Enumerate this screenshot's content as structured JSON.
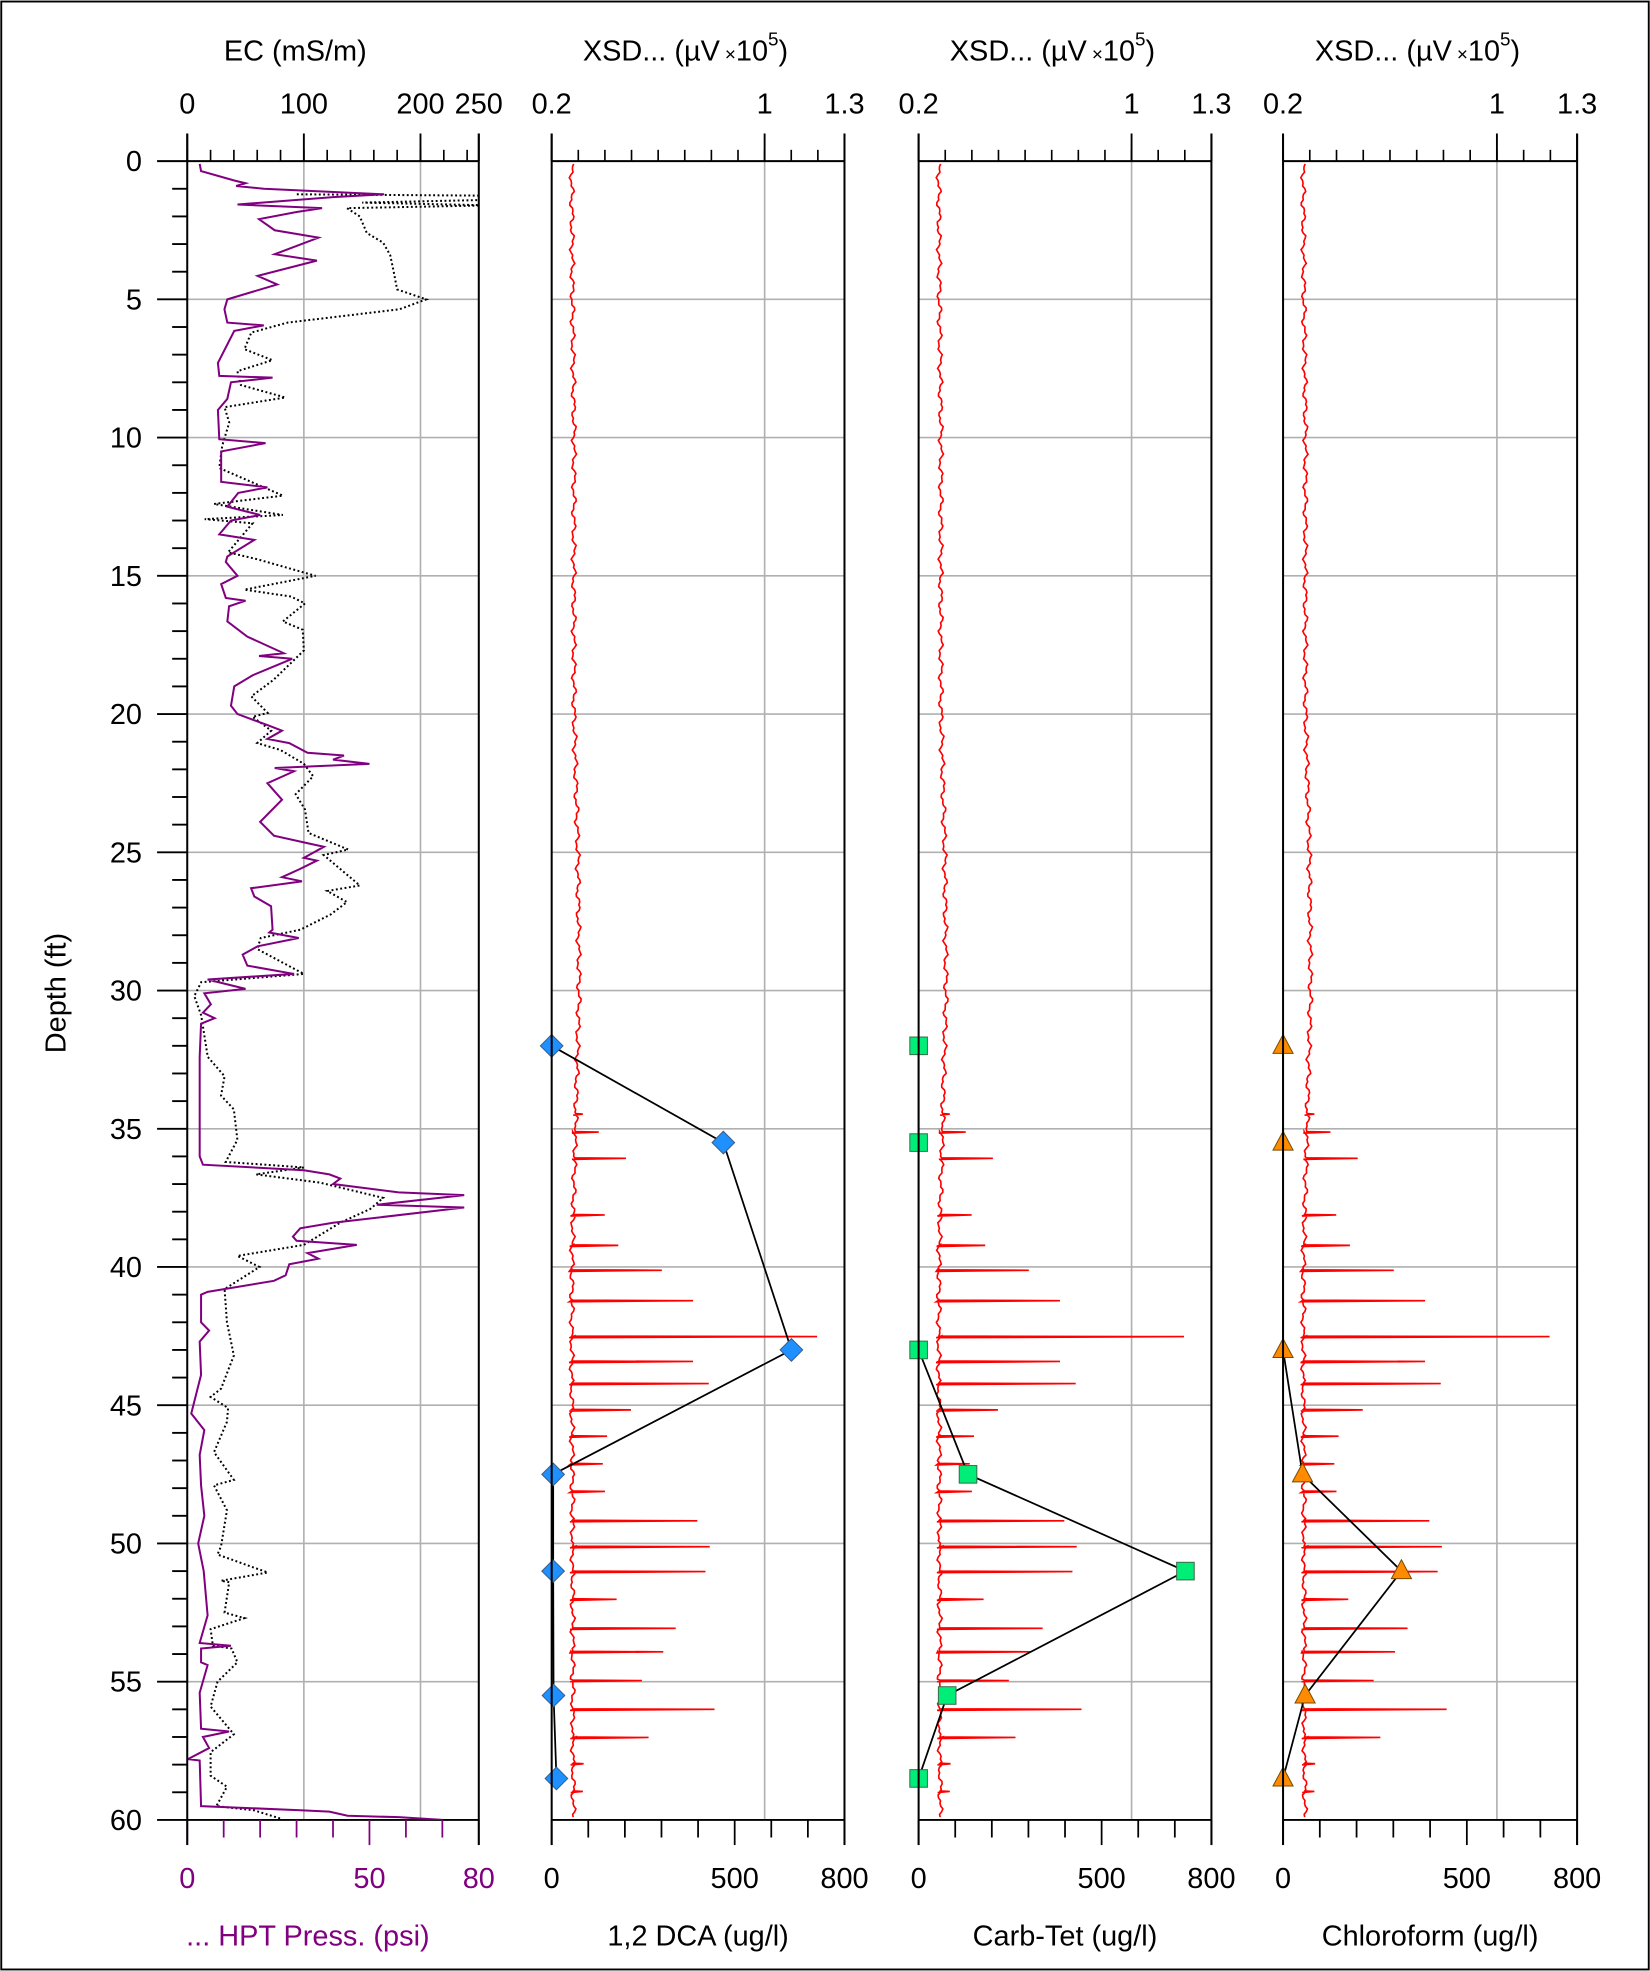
{
  "chart_data": {
    "type": "line",
    "y_axis": {
      "label": "Depth (ft)",
      "range": [
        0,
        60
      ],
      "inverted": true,
      "tick_labels": [
        "0",
        "5",
        "10",
        "15",
        "20",
        "25",
        "30",
        "35",
        "40",
        "45",
        "50",
        "55",
        "60"
      ],
      "grid": true
    },
    "xsd_trace": {
      "name": "XSD...",
      "color": "#FF0000",
      "baseline_depths": [
        0.1,
        5,
        10,
        15,
        20,
        25,
        30,
        35,
        40,
        45,
        50,
        55,
        60
      ],
      "baseline_values": [
        0.275,
        0.278,
        0.284,
        0.283,
        0.284,
        0.298,
        0.303,
        0.289,
        0.276,
        0.276,
        0.279,
        0.279,
        0.282
      ],
      "spike_depths": [
        34.45,
        35.1,
        36.05,
        38.1,
        39.2,
        40.1,
        41.2,
        42.5,
        43.4,
        44.2,
        45.15,
        46.1,
        47.1,
        48.1,
        49.16,
        50.1,
        51.0,
        52.0,
        53.05,
        53.9,
        54.94,
        55.98,
        57.0,
        57.95,
        58.95
      ],
      "spike_values": [
        0.317,
        0.377,
        0.479,
        0.399,
        0.45,
        0.614,
        0.731,
        1.197,
        0.731,
        0.79,
        0.498,
        0.408,
        0.392,
        0.4,
        0.747,
        0.794,
        0.778,
        0.444,
        0.666,
        0.619,
        0.539,
        0.812,
        0.564,
        0.32,
        0.317
      ]
    },
    "panels": [
      {
        "top_axis": {
          "title": "EC (mS/m)",
          "range": [
            0,
            250
          ],
          "tick_labels": [
            "0",
            "100",
            "200",
            "250"
          ],
          "tick_values": [
            0,
            100,
            200,
            250
          ]
        },
        "bottom_axis": {
          "title": "... HPT Press. (psi)",
          "range": [
            0,
            80
          ],
          "tick_labels": [
            "0",
            "50",
            "80"
          ],
          "tick_values": [
            0,
            50,
            80
          ],
          "color": "#800080"
        },
        "series": [
          {
            "name": "EC",
            "axis": "top",
            "color": "#000000",
            "style": "dotted",
            "depth": [
              1.2,
              1.25,
              1.4,
              1.5,
              1.6,
              1.7,
              2.0,
              2.6,
              2.95,
              3.4,
              4.0,
              4.64,
              5.0,
              5.36,
              5.84,
              6.2,
              6.8,
              7.2,
              7.6,
              8.1,
              8.55,
              8.9,
              9.46,
              10.3,
              11.1,
              12.1,
              12.4,
              12.8,
              12.95,
              13.1,
              14.15,
              14.4,
              15.0,
              15.5,
              15.75,
              16.0,
              16.65,
              16.95,
              17.7,
              18.15,
              18.76,
              19.36,
              19.96,
              20.1,
              20.6,
              21.05,
              21.3,
              21.8,
              22.25,
              22.9,
              23.45,
              24.3,
              24.9,
              25.1,
              26.2,
              26.4,
              26.8,
              27.25,
              27.8,
              28.1,
              28.5,
              29.4,
              29.7,
              30.2,
              30.9,
              32.4,
              33.1,
              33.8,
              34.3,
              35.4,
              36.2,
              36.4,
              36.65,
              36.95,
              37.5,
              37.9,
              38.4,
              39.2,
              39.6,
              40.0,
              40.8,
              42.0,
              43.2,
              44.4,
              44.7,
              45.1,
              45.6,
              46.7,
              47.7,
              47.9,
              48.8,
              50.1,
              50.4,
              50.75,
              51.05,
              51.35,
              51.4,
              52.5,
              52.7,
              53.1,
              53.7,
              53.8,
              54.3,
              55.0,
              55.9,
              56.9,
              57.55,
              58.4,
              58.8,
              59.5,
              59.65,
              59.95
            ],
            "values": [
              94,
              260,
              260,
              150,
              260,
              137,
              148,
              154,
              168,
              174,
              177,
              180,
              205,
              182,
              86,
              55,
              49,
              73,
              43,
              46,
              84,
              32,
              36,
              30,
              27.5,
              82,
              23,
              82,
              15,
              56,
              35,
              60,
              110,
              49,
              89,
              101,
              82,
              99,
              100,
              89,
              74,
              55,
              69,
              56,
              72,
              60,
              80,
              100,
              108,
              93,
              101,
              104,
              138,
              117,
              148,
              120,
              137,
              123,
              97,
              63,
              60,
              100,
              12,
              6,
              12,
              17.6,
              32,
              29,
              40,
              43,
              33,
              100,
              59,
              114,
              168,
              157,
              131,
              100,
              43,
              62,
              32,
              34,
              40,
              29,
              20,
              35,
              34,
              23,
              40,
              23,
              34,
              29,
              26,
              49,
              69,
              29,
              36,
              32,
              49,
              20,
              22,
              38,
              43,
              26,
              20,
              40,
              20,
              20,
              34,
              25,
              57,
              80
            ]
          },
          {
            "name": "HPT Press.",
            "axis": "bottom",
            "color": "#800080",
            "style": "solid",
            "depth": [
              0.1,
              0.36,
              0.7,
              0.8,
              0.9,
              1.0,
              1.2,
              1.3,
              1.57,
              1.7,
              1.84,
              2.1,
              2.5,
              2.77,
              3.37,
              3.6,
              4.15,
              4.46,
              5.0,
              5.36,
              5.84,
              5.94,
              6.14,
              7.3,
              7.77,
              7.83,
              8.0,
              8.6,
              9.0,
              10.06,
              10.2,
              10.5,
              11.6,
              11.8,
              12.0,
              12.5,
              12.8,
              13.0,
              13.5,
              13.7,
              14.3,
              14.5,
              15.0,
              15.3,
              15.8,
              15.9,
              16.1,
              16.65,
              17.2,
              17.8,
              17.9,
              18.0,
              18.6,
              19.0,
              19.7,
              20.0,
              20.4,
              20.6,
              20.9,
              21.05,
              21.4,
              21.5,
              21.65,
              21.8,
              21.95,
              22.07,
              22.5,
              23.1,
              23.9,
              24.4,
              24.7,
              24.8,
              25.2,
              25.3,
              25.6,
              25.9,
              26.05,
              26.3,
              26.6,
              26.95,
              27.8,
              27.9,
              28.1,
              28.4,
              28.7,
              29.1,
              29.4,
              29.6,
              29.94,
              30.1,
              30.5,
              30.8,
              31.0,
              31.2,
              32.4,
              36.0,
              36.3,
              36.5,
              36.65,
              36.8,
              37.0,
              37.3,
              37.4,
              37.75,
              37.85,
              38.4,
              38.6,
              38.9,
              39.05,
              39.2,
              39.5,
              39.7,
              39.9,
              40.3,
              40.5,
              40.9,
              41.0,
              42.0,
              42.3,
              42.7,
              43.9,
              45.3,
              45.9,
              46.8,
              47.9,
              49.0,
              50.0,
              51.0,
              52.6,
              53.6,
              53.7,
              53.8,
              54.3,
              54.4,
              55.4,
              56.7,
              56.8,
              57.0,
              57.4,
              57.8,
              57.85,
              59.5,
              59.65,
              59.7,
              59.85,
              59.9,
              60.0
            ],
            "values": [
              3.4,
              3.8,
              12.9,
              16,
              13.4,
              21,
              54,
              40,
              13.8,
              37,
              30,
              19.7,
              24,
              36,
              24,
              35.6,
              19.3,
              24.7,
              11,
              10.2,
              11,
              21,
              12.9,
              8.4,
              8.8,
              23.4,
              12,
              11,
              8.4,
              8.8,
              21.5,
              9.3,
              9.3,
              22,
              14,
              11,
              20,
              12,
              8.8,
              18.4,
              11,
              10.6,
              13.8,
              9.3,
              10.6,
              16,
              11.5,
              11,
              16.5,
              26.5,
              19.7,
              28.8,
              17.9,
              12.9,
              12,
              13.8,
              22,
              26,
              22,
              28,
              33,
              43,
              40,
              50,
              24,
              29.3,
              22,
              26,
              20,
              23.8,
              34,
              37.5,
              32,
              35.6,
              31,
              26,
              31.5,
              17.5,
              18.4,
              23,
              23.4,
              22.5,
              30.6,
              19.3,
              15.2,
              16.5,
              29.3,
              5.6,
              16,
              4.7,
              6.5,
              4.3,
              7.5,
              3.8,
              3.4,
              3.4,
              4.3,
              32,
              39,
              42,
              40,
              58,
              76,
              52,
              76,
              40,
              31,
              29,
              30,
              46.5,
              33,
              36,
              28,
              27,
              23.8,
              5.6,
              3.8,
              3.8,
              6,
              3.4,
              3.8,
              1.1,
              4.7,
              3.4,
              3.8,
              4.7,
              3,
              4.5,
              5.6,
              3.4,
              12,
              3.8,
              3.8,
              5.6,
              3.4,
              3.8,
              11.5,
              4.3,
              6,
              0.2,
              3.4,
              3.8,
              31,
              39,
              44,
              58,
              70
            ]
          }
        ]
      },
      {
        "top_axis": {
          "title_prefix": "XSD... (µV",
          "title_times": "×",
          "title_base": "10",
          "title_exp": "5",
          "title_suffix": ")",
          "range": [
            0.2,
            1.3
          ],
          "tick_labels": [
            "0.2",
            "1",
            "1.3"
          ],
          "tick_values": [
            0.2,
            1,
            1.3
          ]
        },
        "bottom_axis": {
          "title": "1,2 DCA (ug/l)",
          "range": [
            0,
            800
          ],
          "tick_labels": [
            "0",
            "500",
            "800"
          ],
          "tick_values": [
            0,
            500,
            800
          ]
        },
        "samples": {
          "name": "1,2 DCA",
          "marker": "diamond",
          "color": "#1E90FF",
          "depth": [
            32,
            35.5,
            43,
            47.5,
            51,
            55.5,
            58.5
          ],
          "values": [
            0,
            469,
            655,
            4,
            4,
            5,
            13
          ]
        }
      },
      {
        "top_axis": {
          "title_prefix": "XSD... (µV",
          "title_times": "×",
          "title_base": "10",
          "title_exp": "5",
          "title_suffix": ")",
          "range": [
            0.2,
            1.3
          ],
          "tick_labels": [
            "0.2",
            "1",
            "1.3"
          ],
          "tick_values": [
            0.2,
            1,
            1.3
          ]
        },
        "bottom_axis": {
          "title": "Carb-Tet (ug/l)",
          "range": [
            0,
            800
          ],
          "tick_labels": [
            "0",
            "500",
            "800"
          ],
          "tick_values": [
            0,
            500,
            800
          ]
        },
        "samples": {
          "name": "Carb-Tet",
          "marker": "square",
          "color": "#00EE77",
          "depth": [
            32,
            35.5,
            43,
            47.5,
            51,
            55.5,
            58.5
          ],
          "values": [
            0,
            0,
            0,
            135,
            729,
            78,
            0
          ]
        }
      },
      {
        "top_axis": {
          "title_prefix": "XSD... (µV",
          "title_times": "×",
          "title_base": "10",
          "title_exp": "5",
          "title_suffix": ")",
          "range": [
            0.2,
            1.3
          ],
          "tick_labels": [
            "0.2",
            "1",
            "1.3"
          ],
          "tick_values": [
            0.2,
            1,
            1.3
          ]
        },
        "bottom_axis": {
          "title": "Chloroform (ug/l)",
          "range": [
            0,
            800
          ],
          "tick_labels": [
            "0",
            "500",
            "800"
          ],
          "tick_values": [
            0,
            500,
            800
          ]
        },
        "samples": {
          "name": "Chloroform",
          "marker": "triangle",
          "color": "#FF8C00",
          "depth": [
            32,
            35.5,
            43,
            47.5,
            51,
            55.5,
            58.5
          ],
          "values": [
            0,
            0,
            0,
            53,
            322,
            60,
            0
          ]
        }
      }
    ]
  }
}
